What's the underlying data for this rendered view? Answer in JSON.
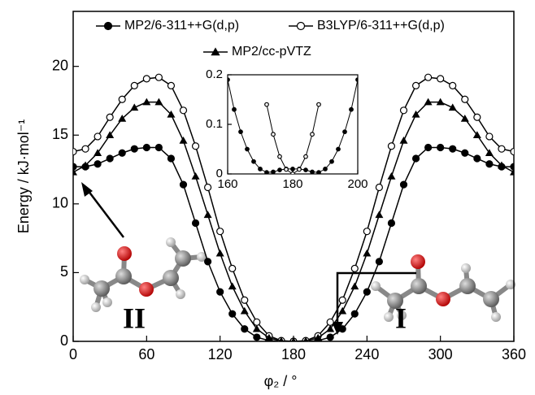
{
  "chart_data": [
    {
      "type": "line",
      "xlabel": "φ₂ / °",
      "ylabel": "Energy / kJ·mol⁻¹",
      "xlim": [
        0,
        360
      ],
      "xticks": [
        0,
        60,
        120,
        180,
        240,
        300,
        360
      ],
      "ylim": [
        0,
        24
      ],
      "yticks": [
        0,
        5,
        10,
        15,
        20
      ],
      "x": [
        0,
        10,
        20,
        30,
        40,
        50,
        60,
        70,
        80,
        90,
        100,
        110,
        120,
        130,
        140,
        150,
        160,
        170,
        180,
        190,
        200,
        210,
        220,
        230,
        240,
        250,
        260,
        270,
        280,
        290,
        300,
        310,
        320,
        330,
        340,
        350,
        360
      ],
      "series": [
        {
          "name": "MP2/6-311++G(d,p)",
          "color": "#000000",
          "marker": "circle-filled",
          "values": [
            12.7,
            12.7,
            12.9,
            13.3,
            13.7,
            14.0,
            14.1,
            14.1,
            13.3,
            11.4,
            8.6,
            5.8,
            3.6,
            2.0,
            0.9,
            0.3,
            0.05,
            0,
            0,
            0,
            0.05,
            0.3,
            0.9,
            2.0,
            3.6,
            5.8,
            8.6,
            11.4,
            13.3,
            14.1,
            14.1,
            14.0,
            13.7,
            13.3,
            12.9,
            12.7,
            12.7
          ]
        },
        {
          "name": "B3LYP/6-311++G(d,p)",
          "color": "#000000",
          "marker": "circle-open",
          "values": [
            13.8,
            14.0,
            14.9,
            16.3,
            17.6,
            18.6,
            19.1,
            19.2,
            18.6,
            16.8,
            14.2,
            11.2,
            8.0,
            5.3,
            3.0,
            1.4,
            0.4,
            0.05,
            0,
            0.05,
            0.4,
            1.4,
            3.0,
            5.3,
            8.0,
            11.2,
            14.2,
            16.8,
            18.6,
            19.2,
            19.1,
            18.6,
            17.6,
            16.3,
            14.9,
            14.0,
            13.8
          ]
        },
        {
          "name": "MP2/cc-pVTZ",
          "color": "#000000",
          "marker": "triangle",
          "values": [
            12.3,
            12.8,
            13.7,
            15.0,
            16.2,
            17.0,
            17.4,
            17.4,
            16.5,
            14.6,
            12.0,
            9.2,
            6.4,
            4.0,
            2.2,
            0.9,
            0.25,
            0.02,
            0,
            0.02,
            0.25,
            0.9,
            2.2,
            4.0,
            6.4,
            9.2,
            12.0,
            14.6,
            16.5,
            17.4,
            17.4,
            17.0,
            16.2,
            15.0,
            13.7,
            12.8,
            12.3
          ]
        }
      ],
      "annotations": [
        "II",
        "I"
      ]
    },
    {
      "type": "line",
      "xlim": [
        160,
        200
      ],
      "xticks": [
        160,
        180,
        200
      ],
      "ylim": [
        0,
        0.2
      ],
      "yticks": [
        0,
        0.1,
        0.2
      ],
      "x": [
        160,
        162,
        164,
        166,
        168,
        170,
        172,
        174,
        176,
        178,
        180,
        182,
        184,
        186,
        188,
        190,
        192,
        194,
        196,
        198,
        200
      ],
      "series": [
        {
          "color": "#000000",
          "marker": "circle-filled",
          "values": [
            0.19,
            0.13,
            0.085,
            0.05,
            0.025,
            0.01,
            0.003,
            0.004,
            0.008,
            0.01,
            0.01,
            0.01,
            0.008,
            0.004,
            0.003,
            0.01,
            0.025,
            0.05,
            0.085,
            0.13,
            0.19
          ]
        },
        {
          "color": "#000000",
          "marker": "circle-open",
          "values": [
            null,
            null,
            null,
            null,
            null,
            null,
            0.14,
            0.08,
            0.035,
            0.009,
            0,
            0.009,
            0.035,
            0.08,
            0.14,
            null,
            null,
            null,
            null,
            null,
            null
          ]
        }
      ]
    }
  ]
}
